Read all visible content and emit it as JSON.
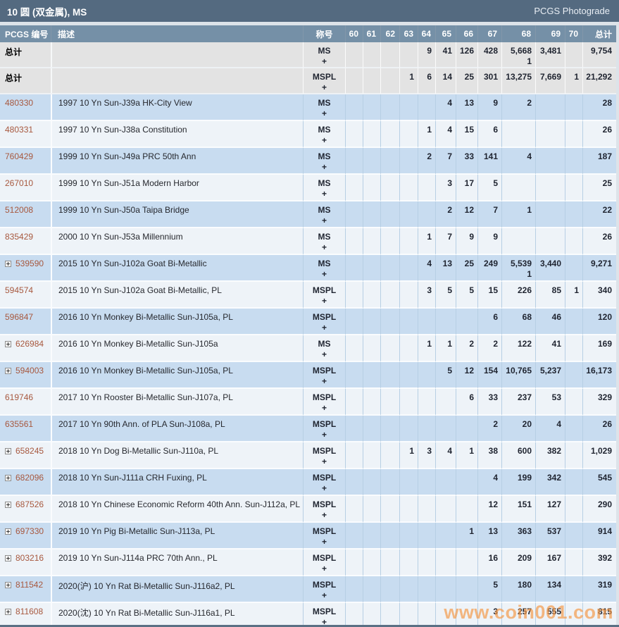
{
  "title_bar": {
    "title": "10 圆 (双金属), MS",
    "photograde_link": "PCGS Photograde"
  },
  "watermark": {
    "text": "www.coin001.com"
  },
  "colors": {
    "title_bar_bg": "#546a80",
    "header_bg": "#7590a7",
    "row_blue": "#c8dcf0",
    "row_light": "#eef3f8",
    "totals_row_bg": "#e3e3e3",
    "link": "#a7583e",
    "watermark": "#f39846"
  },
  "table": {
    "columns": [
      "PCGS 编号",
      "描述",
      "称号",
      "60",
      "61",
      "62",
      "63",
      "64",
      "65",
      "66",
      "67",
      "68",
      "69",
      "70",
      "总计"
    ],
    "grade_keys": [
      "g60",
      "g61",
      "g62",
      "g63",
      "g64",
      "g65",
      "g66",
      "g67",
      "g68",
      "g69",
      "g70"
    ],
    "total_rows": [
      {
        "label": "总计",
        "designation": "MS",
        "plus": "+",
        "grades": {
          "g64": "9",
          "g65": "41",
          "g66": "126",
          "g67": "428",
          "g68": "5,668",
          "g69": "3,481"
        },
        "plus_counts": {
          "g68": "1"
        },
        "total": "9,754"
      },
      {
        "label": "总计",
        "designation": "MSPL",
        "plus": "+",
        "grades": {
          "g63": "1",
          "g64": "6",
          "g65": "14",
          "g66": "25",
          "g67": "301",
          "g68": "13,275",
          "g69": "7,669",
          "g70": "1"
        },
        "plus_counts": {},
        "total": "21,292"
      }
    ],
    "rows": [
      {
        "pcgs": "480330",
        "expandable": false,
        "desc": "1997 10 Yn Sun-J39a HK-City View",
        "designation": "MS",
        "plus": "+",
        "grades": {
          "g65": "4",
          "g66": "13",
          "g67": "9",
          "g68": "2"
        },
        "plus_counts": {},
        "total": "28"
      },
      {
        "pcgs": "480331",
        "expandable": false,
        "desc": "1997 10 Yn Sun-J38a Constitution",
        "designation": "MS",
        "plus": "+",
        "grades": {
          "g64": "1",
          "g65": "4",
          "g66": "15",
          "g67": "6"
        },
        "plus_counts": {},
        "total": "26"
      },
      {
        "pcgs": "760429",
        "expandable": false,
        "desc": "1999 10 Yn Sun-J49a PRC 50th Ann",
        "designation": "MS",
        "plus": "+",
        "grades": {
          "g64": "2",
          "g65": "7",
          "g66": "33",
          "g67": "141",
          "g68": "4"
        },
        "plus_counts": {},
        "total": "187"
      },
      {
        "pcgs": "267010",
        "expandable": false,
        "desc": "1999 10 Yn Sun-J51a Modern Harbor",
        "designation": "MS",
        "plus": "+",
        "grades": {
          "g65": "3",
          "g66": "17",
          "g67": "5"
        },
        "plus_counts": {},
        "total": "25"
      },
      {
        "pcgs": "512008",
        "expandable": false,
        "desc": "1999 10 Yn Sun-J50a Taipa Bridge",
        "designation": "MS",
        "plus": "+",
        "grades": {
          "g65": "2",
          "g66": "12",
          "g67": "7",
          "g68": "1"
        },
        "plus_counts": {},
        "total": "22"
      },
      {
        "pcgs": "835429",
        "expandable": false,
        "desc": "2000 10 Yn Sun-J53a Millennium",
        "designation": "MS",
        "plus": "+",
        "grades": {
          "g64": "1",
          "g65": "7",
          "g66": "9",
          "g67": "9"
        },
        "plus_counts": {},
        "total": "26"
      },
      {
        "pcgs": "539590",
        "expandable": true,
        "desc": "2015 10 Yn Sun-J102a Goat Bi-Metallic",
        "designation": "MS",
        "plus": "+",
        "grades": {
          "g64": "4",
          "g65": "13",
          "g66": "25",
          "g67": "249",
          "g68": "5,539",
          "g69": "3,440"
        },
        "plus_counts": {
          "g68": "1"
        },
        "total": "9,271"
      },
      {
        "pcgs": "594574",
        "expandable": false,
        "desc": "2015 10 Yn Sun-J102a Goat Bi-Metallic, PL",
        "designation": "MSPL",
        "plus": "+",
        "grades": {
          "g64": "3",
          "g65": "5",
          "g66": "5",
          "g67": "15",
          "g68": "226",
          "g69": "85",
          "g70": "1"
        },
        "plus_counts": {},
        "total": "340"
      },
      {
        "pcgs": "596847",
        "expandable": false,
        "desc": "2016 10 Yn Monkey Bi-Metallic Sun-J105a, PL",
        "designation": "MSPL",
        "plus": "+",
        "grades": {
          "g67": "6",
          "g68": "68",
          "g69": "46"
        },
        "plus_counts": {},
        "total": "120"
      },
      {
        "pcgs": "626984",
        "expandable": true,
        "desc": "2016 10 Yn Monkey Bi-Metallic Sun-J105a",
        "designation": "MS",
        "plus": "+",
        "grades": {
          "g64": "1",
          "g65": "1",
          "g66": "2",
          "g67": "2",
          "g68": "122",
          "g69": "41"
        },
        "plus_counts": {},
        "total": "169"
      },
      {
        "pcgs": "594003",
        "expandable": true,
        "desc": "2016 10 Yn Monkey Bi-Metallic Sun-J105a, PL",
        "designation": "MSPL",
        "plus": "+",
        "grades": {
          "g65": "5",
          "g66": "12",
          "g67": "154",
          "g68": "10,765",
          "g69": "5,237"
        },
        "plus_counts": {},
        "total": "16,173"
      },
      {
        "pcgs": "619746",
        "expandable": false,
        "desc": "2017 10 Yn Rooster Bi-Metallic Sun-J107a, PL",
        "designation": "MSPL",
        "plus": "+",
        "grades": {
          "g66": "6",
          "g67": "33",
          "g68": "237",
          "g69": "53"
        },
        "plus_counts": {},
        "total": "329"
      },
      {
        "pcgs": "635561",
        "expandable": false,
        "desc": "2017 10 Yn 90th Ann. of PLA Sun-J108a, PL",
        "designation": "MSPL",
        "plus": "+",
        "grades": {
          "g67": "2",
          "g68": "20",
          "g69": "4"
        },
        "plus_counts": {},
        "total": "26"
      },
      {
        "pcgs": "658245",
        "expandable": true,
        "desc": "2018 10 Yn Dog Bi-Metallic Sun-J110a, PL",
        "designation": "MSPL",
        "plus": "+",
        "grades": {
          "g63": "1",
          "g64": "3",
          "g65": "4",
          "g66": "1",
          "g67": "38",
          "g68": "600",
          "g69": "382"
        },
        "plus_counts": {},
        "total": "1,029"
      },
      {
        "pcgs": "682096",
        "expandable": true,
        "desc": "2018 10 Yn Sun-J111a CRH Fuxing, PL",
        "designation": "MSPL",
        "plus": "+",
        "grades": {
          "g67": "4",
          "g68": "199",
          "g69": "342"
        },
        "plus_counts": {},
        "total": "545"
      },
      {
        "pcgs": "687526",
        "expandable": true,
        "desc": "2018 10 Yn Chinese Economic Reform 40th Ann. Sun-J112a, PL",
        "designation": "MSPL",
        "plus": "+",
        "grades": {
          "g67": "12",
          "g68": "151",
          "g69": "127"
        },
        "plus_counts": {},
        "total": "290"
      },
      {
        "pcgs": "697330",
        "expandable": true,
        "desc": "2019 10 Yn Pig Bi-Metallic Sun-J113a, PL",
        "designation": "MSPL",
        "plus": "+",
        "grades": {
          "g66": "1",
          "g67": "13",
          "g68": "363",
          "g69": "537"
        },
        "plus_counts": {},
        "total": "914"
      },
      {
        "pcgs": "803216",
        "expandable": true,
        "desc": "2019 10 Yn Sun-J114a PRC 70th Ann., PL",
        "designation": "MSPL",
        "plus": "+",
        "grades": {
          "g67": "16",
          "g68": "209",
          "g69": "167"
        },
        "plus_counts": {},
        "total": "392"
      },
      {
        "pcgs": "811542",
        "expandable": true,
        "desc": "2020(沪) 10 Yn Rat Bi-Metallic Sun-J116a2, PL",
        "designation": "MSPL",
        "plus": "+",
        "grades": {
          "g67": "5",
          "g68": "180",
          "g69": "134"
        },
        "plus_counts": {},
        "total": "319"
      },
      {
        "pcgs": "811608",
        "expandable": true,
        "desc": "2020(沈) 10 Yn Rat Bi-Metallic Sun-J116a1, PL",
        "designation": "MSPL",
        "plus": "+",
        "grades": {
          "g67": "3",
          "g68": "257",
          "g69": "555"
        },
        "plus_counts": {},
        "total": "815"
      }
    ]
  }
}
